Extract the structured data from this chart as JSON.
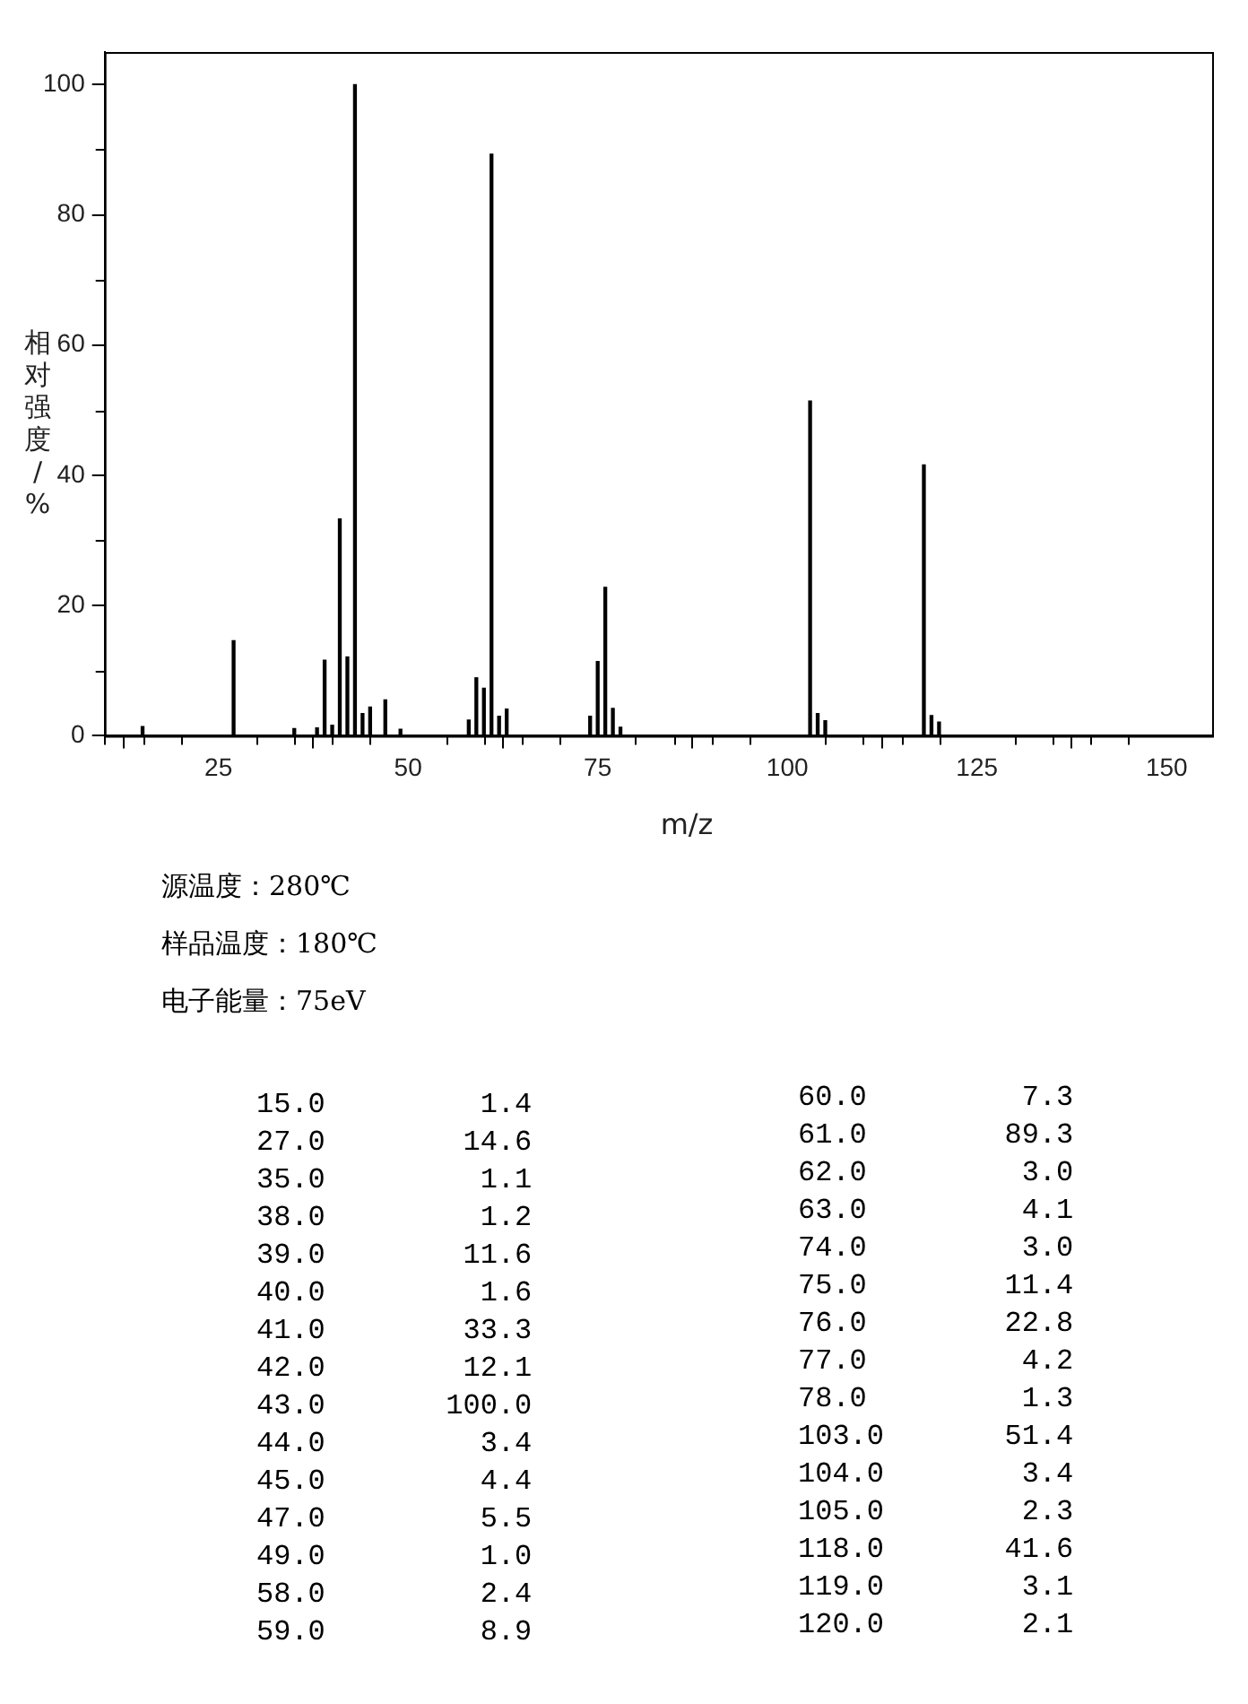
{
  "chart_data": [
    {
      "type": "bar",
      "xlabel": "m/z",
      "ylabel": "相对强度/%",
      "x": [
        15,
        27,
        35,
        38,
        39,
        40,
        41,
        42,
        43,
        44,
        45,
        47,
        49,
        58,
        59,
        60,
        61,
        62,
        63,
        74,
        75,
        76,
        77,
        78,
        103,
        104,
        105,
        118,
        119,
        120
      ],
      "values": [
        1.4,
        14.6,
        1.1,
        1.2,
        11.6,
        1.6,
        33.3,
        12.1,
        100.0,
        3.4,
        4.4,
        5.5,
        1.0,
        2.4,
        8.9,
        7.3,
        89.3,
        3.0,
        4.1,
        3.0,
        11.4,
        22.8,
        4.2,
        1.3,
        51.4,
        3.4,
        2.3,
        41.6,
        3.1,
        2.1
      ],
      "color": "#000000",
      "xlim": [
        10,
        156
      ],
      "xticks": [
        {
          "value": 10,
          "label": null
        },
        {
          "value": 15,
          "label": null
        },
        {
          "value": 20,
          "label": null
        },
        25,
        {
          "value": 30,
          "label": null
        },
        {
          "value": 35,
          "label": null
        },
        {
          "value": 40,
          "label": null
        },
        {
          "value": 45,
          "label": null
        },
        50,
        {
          "value": 55,
          "label": null
        },
        {
          "value": 60,
          "label": null
        },
        {
          "value": 65,
          "label": null
        },
        {
          "value": 70,
          "label": null
        },
        75,
        {
          "value": 80,
          "label": null
        },
        {
          "value": 85,
          "label": null
        },
        {
          "value": 90,
          "label": null
        },
        {
          "value": 95,
          "label": null
        },
        100,
        {
          "value": 105,
          "label": null
        },
        {
          "value": 110,
          "label": null
        },
        {
          "value": 115,
          "label": null
        },
        {
          "value": 120,
          "label": null
        },
        125,
        {
          "value": 130,
          "label": null
        },
        {
          "value": 135,
          "label": null
        },
        {
          "value": 140,
          "label": null
        },
        {
          "value": 145,
          "label": null
        },
        150
      ],
      "ylim": [
        0,
        105
      ],
      "yticks": [
        0,
        {
          "value": 10,
          "label": null
        },
        20,
        {
          "value": 30,
          "label": null
        },
        40,
        {
          "value": 50,
          "label": null
        },
        60,
        {
          "value": 70,
          "label": null
        },
        80,
        {
          "value": 90,
          "label": null
        },
        100
      ],
      "grid": false,
      "legend": false,
      "annotations": [
        "源温度：280℃",
        "样品温度：180℃",
        "电子能量：75eV"
      ]
    },
    {
      "type": "other",
      "annotations": [
        "15.0         1.4",
        "27.0        14.6",
        "35.0         1.1",
        "38.0         1.2",
        "39.0        11.6",
        "40.0         1.6",
        "41.0        33.3",
        "42.0        12.1",
        "43.0       100.0",
        "44.0         3.4",
        "45.0         4.4",
        "47.0         5.5",
        "49.0         1.0",
        "58.0         2.4",
        "59.0         8.9",
        "60.0         7.3",
        "61.0        89.3",
        "62.0         3.0",
        "63.0         4.1",
        "74.0         3.0",
        "75.0        11.4",
        "76.0        22.8",
        "77.0         4.2",
        "78.0         1.3",
        "103.0       51.4",
        "104.0        3.4",
        "105.0        2.3",
        "118.0       41.6",
        "119.0        3.1",
        "120.0        2.1"
      ]
    }
  ]
}
